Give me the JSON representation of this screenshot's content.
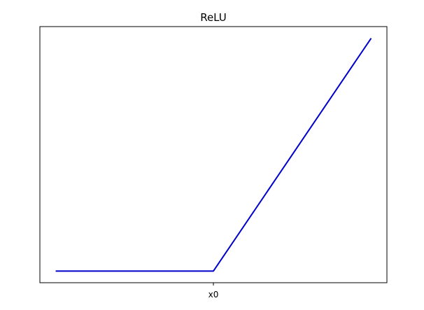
{
  "chart_data": {
    "type": "line",
    "title": "ReLU",
    "xlabel": "",
    "ylabel": "",
    "x_tick_labels": [
      {
        "label": "x0",
        "value": 0
      }
    ],
    "y_tick_labels": [],
    "xlim": [
      -1.1,
      1.1
    ],
    "ylim": [
      -0.05,
      1.05
    ],
    "grid": false,
    "legend": "none",
    "series": [
      {
        "color": "#0000cc",
        "x": [
          -1,
          0,
          1
        ],
        "y": [
          0,
          0,
          1
        ]
      }
    ]
  }
}
